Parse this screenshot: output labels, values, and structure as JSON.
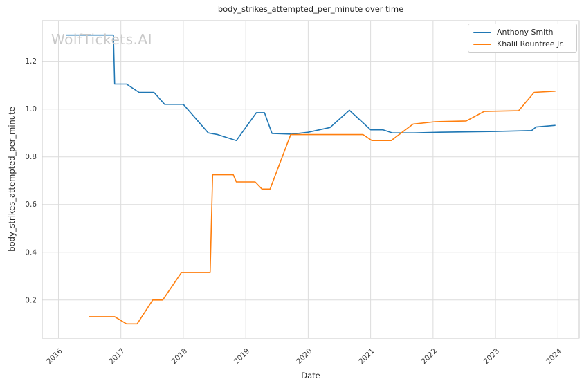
{
  "watermark": "WolfTickets.AI",
  "colors": {
    "background": "#ffffff",
    "grid": "#dcdcdc",
    "spine": "#c9c9c9",
    "title_text": "#262626",
    "tick_text": "#3a3a3a",
    "series_blue": "#1f77b4",
    "series_orange": "#ff7f0e",
    "watermark_text": "#c9c9c9",
    "legend_border": "#cccccc"
  },
  "chart_data": {
    "type": "line",
    "title": "body_strikes_attempted_per_minute over time",
    "xlabel": "Date",
    "ylabel": "body_strikes_attempted_per_minute",
    "xlim": [
      2015.74,
      2024.34
    ],
    "ylim": [
      0.04,
      1.37
    ],
    "grid": true,
    "legend_position": "upper right",
    "x_ticks": [
      {
        "value": 2016,
        "label": "2016"
      },
      {
        "value": 2017,
        "label": "2017"
      },
      {
        "value": 2018,
        "label": "2018"
      },
      {
        "value": 2019,
        "label": "2019"
      },
      {
        "value": 2020,
        "label": "2020"
      },
      {
        "value": 2021,
        "label": "2021"
      },
      {
        "value": 2022,
        "label": "2022"
      },
      {
        "value": 2023,
        "label": "2023"
      },
      {
        "value": 2024,
        "label": "2024"
      }
    ],
    "y_ticks": [
      {
        "value": 0.2,
        "label": "0.2"
      },
      {
        "value": 0.4,
        "label": "0.4"
      },
      {
        "value": 0.6,
        "label": "0.6"
      },
      {
        "value": 0.8,
        "label": "0.8"
      },
      {
        "value": 1.0,
        "label": "1.0"
      },
      {
        "value": 1.2,
        "label": "1.2"
      }
    ],
    "series": [
      {
        "name": "Anthony Smith",
        "color": "#1f77b4",
        "points": [
          [
            2016.12,
            1.31
          ],
          [
            2016.88,
            1.31
          ],
          [
            2016.9,
            1.105
          ],
          [
            2017.09,
            1.105
          ],
          [
            2017.29,
            1.07
          ],
          [
            2017.53,
            1.07
          ],
          [
            2017.7,
            1.02
          ],
          [
            2018.0,
            1.02
          ],
          [
            2018.4,
            0.9
          ],
          [
            2018.55,
            0.893
          ],
          [
            2018.85,
            0.868
          ],
          [
            2019.17,
            0.985
          ],
          [
            2019.3,
            0.985
          ],
          [
            2019.42,
            0.898
          ],
          [
            2019.74,
            0.895
          ],
          [
            2020.0,
            0.903
          ],
          [
            2020.35,
            0.923
          ],
          [
            2020.66,
            0.995
          ],
          [
            2021.0,
            0.913
          ],
          [
            2021.2,
            0.913
          ],
          [
            2021.35,
            0.9
          ],
          [
            2021.7,
            0.9
          ],
          [
            2022.1,
            0.903
          ],
          [
            2023.0,
            0.906
          ],
          [
            2023.58,
            0.91
          ],
          [
            2023.65,
            0.925
          ],
          [
            2023.96,
            0.932
          ]
        ]
      },
      {
        "name": "Khalil Rountree Jr.",
        "color": "#ff7f0e",
        "points": [
          [
            2016.49,
            0.13
          ],
          [
            2016.9,
            0.13
          ],
          [
            2017.09,
            0.1
          ],
          [
            2017.26,
            0.1
          ],
          [
            2017.51,
            0.2
          ],
          [
            2017.67,
            0.2
          ],
          [
            2017.97,
            0.315
          ],
          [
            2018.43,
            0.315
          ],
          [
            2018.47,
            0.725
          ],
          [
            2018.8,
            0.725
          ],
          [
            2018.85,
            0.695
          ],
          [
            2019.15,
            0.695
          ],
          [
            2019.26,
            0.665
          ],
          [
            2019.39,
            0.665
          ],
          [
            2019.72,
            0.893
          ],
          [
            2020.88,
            0.893
          ],
          [
            2021.02,
            0.868
          ],
          [
            2021.33,
            0.868
          ],
          [
            2021.68,
            0.937
          ],
          [
            2022.03,
            0.947
          ],
          [
            2022.53,
            0.95
          ],
          [
            2022.82,
            0.99
          ],
          [
            2023.37,
            0.993
          ],
          [
            2023.62,
            1.07
          ],
          [
            2023.96,
            1.075
          ]
        ]
      }
    ]
  }
}
